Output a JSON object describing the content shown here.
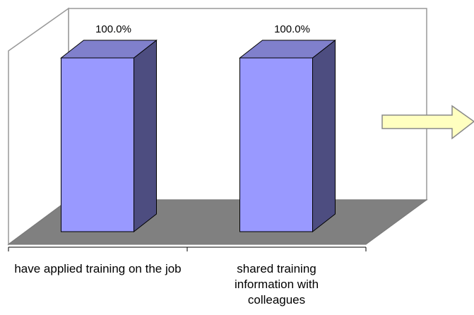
{
  "chart_data": {
    "type": "bar3d",
    "categories": [
      "have applied training on the job",
      "shared training information with colleagues"
    ],
    "values": [
      100,
      100
    ],
    "value_labels": [
      "100.0%",
      "100.0%"
    ],
    "color": "#9999ff",
    "ylim": [
      0,
      100
    ]
  }
}
